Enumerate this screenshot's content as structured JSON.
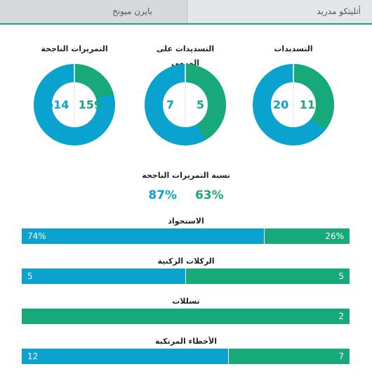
{
  "header": {
    "away_team": "بايرن ميونخ",
    "home_team": "أتليتكو مدريد"
  },
  "colors": {
    "home": "#17a97a",
    "away": "#0aa3cf"
  },
  "donuts": [
    {
      "title": "التسديدات",
      "home": 11,
      "away": 20
    },
    {
      "title": "التسديدات على المرمى",
      "home": 5,
      "away": 7
    },
    {
      "title": "التمريرات الناجحة",
      "home": 159,
      "away": 614
    }
  ],
  "pass_accuracy": {
    "title": "نسبة التمريرات الناجحة",
    "home": "63%",
    "away": "87%"
  },
  "bars": [
    {
      "title": "الاستحواذ",
      "home_label": "26%",
      "away_label": "74%",
      "home": 26,
      "away": 74
    },
    {
      "title": "الركلات الركنية",
      "home_label": "5",
      "away_label": "5",
      "home": 5,
      "away": 5
    },
    {
      "title": "تسللات",
      "home_label": "2",
      "away_label": "",
      "home": 2,
      "away": 0
    },
    {
      "title": "الأخطاء المرتكبة",
      "home_label": "7",
      "away_label": "12",
      "home": 7,
      "away": 12
    }
  ]
}
